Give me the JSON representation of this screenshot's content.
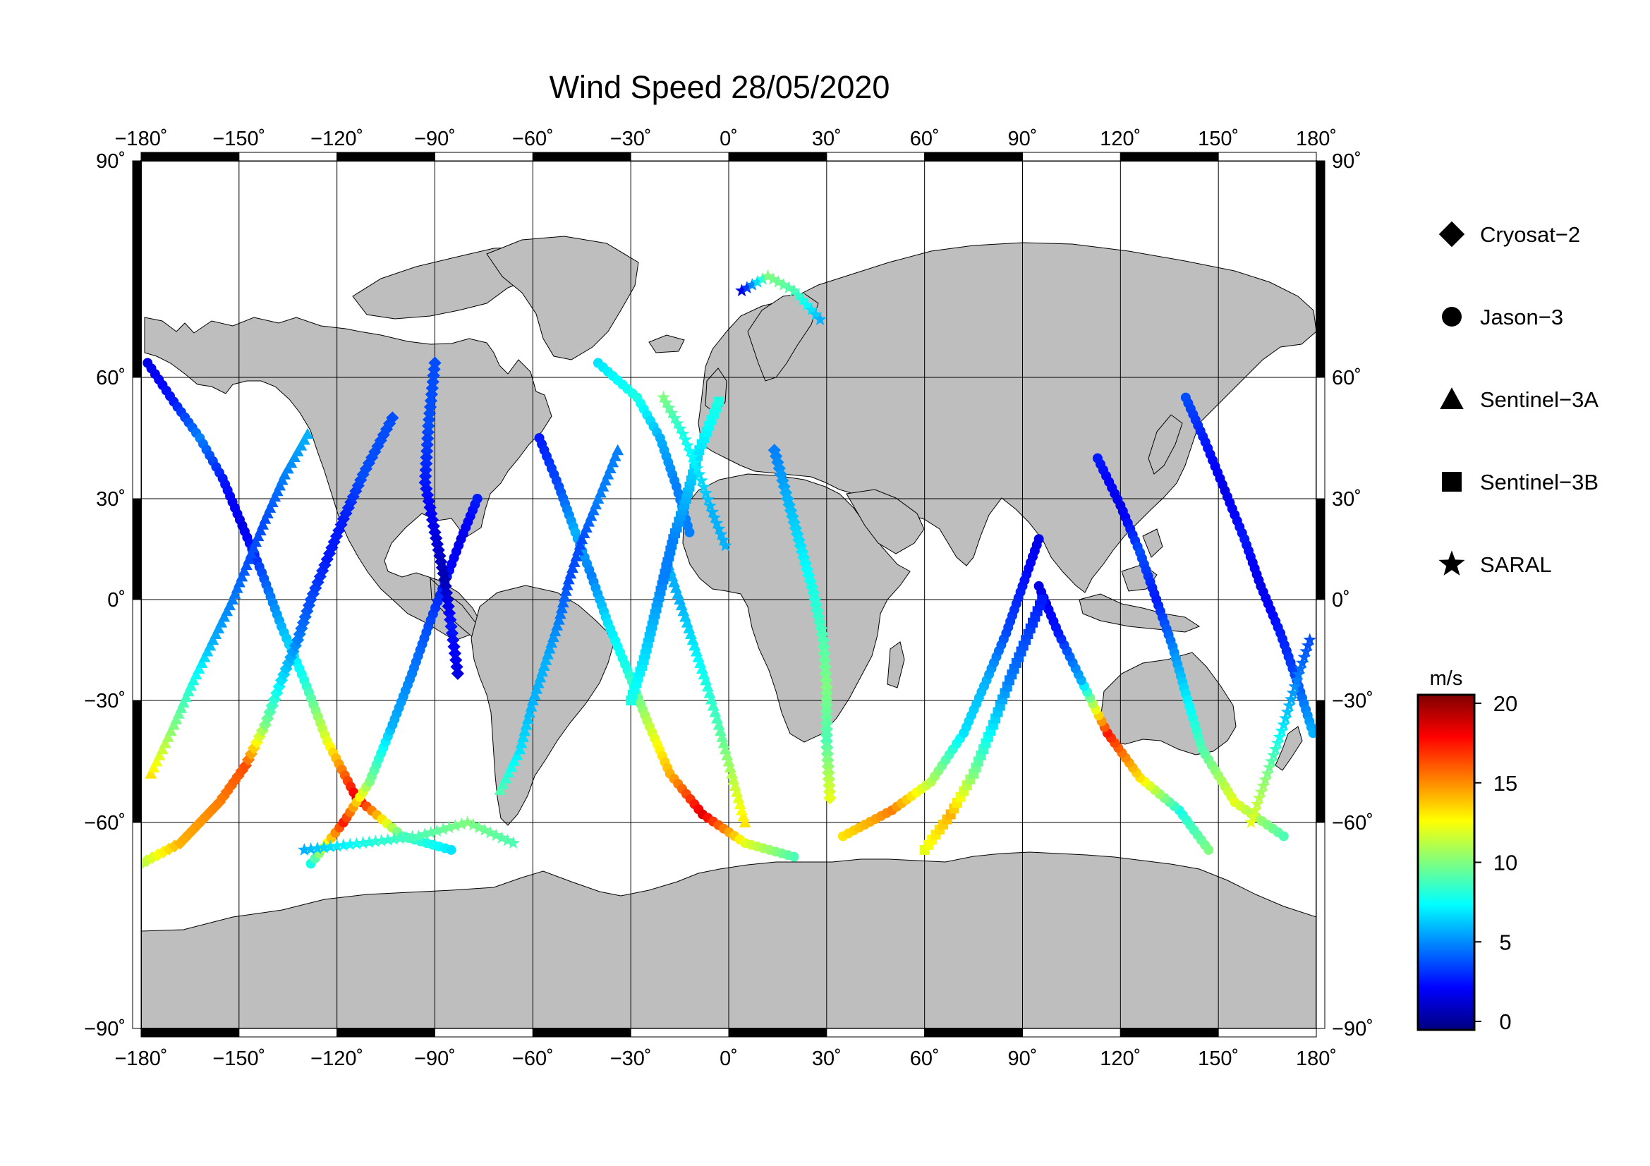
{
  "title": "Wind Speed 28/05/2020",
  "map": {
    "x_ticks": [
      -180,
      -150,
      -120,
      -90,
      -60,
      -30,
      0,
      30,
      60,
      90,
      120,
      150,
      180
    ],
    "y_ticks": [
      90,
      60,
      30,
      0,
      -30,
      -60,
      -90
    ],
    "x_tick_labels": [
      "−180˚",
      "−150˚",
      "−120˚",
      "−90˚",
      "−60˚",
      "−30˚",
      "0˚",
      "30˚",
      "60˚",
      "90˚",
      "120˚",
      "150˚",
      "180˚"
    ],
    "y_tick_labels": [
      "90˚",
      "60˚",
      "30˚",
      "0˚",
      "−30˚",
      "−60˚",
      "−90˚"
    ],
    "lon_range": [
      -180,
      180
    ],
    "lat_range": [
      -90,
      90
    ],
    "projection": "Mercator",
    "land_color": "#bebebe",
    "ocean_color": "#ffffff",
    "graticule": true
  },
  "legend": {
    "placement": "right",
    "items": [
      {
        "label": "Cryosat−2",
        "marker": "diamond"
      },
      {
        "label": "Jason−3",
        "marker": "circle"
      },
      {
        "label": "Sentinel−3A",
        "marker": "triangle"
      },
      {
        "label": "Sentinel−3B",
        "marker": "square"
      },
      {
        "label": "SARAL",
        "marker": "star"
      }
    ]
  },
  "colorbar": {
    "unit": "m/s",
    "min": 0,
    "max": 20,
    "ticks": [
      0,
      5,
      10,
      15,
      20
    ],
    "colormap": "jet",
    "colors": [
      "#00007f",
      "#0000ff",
      "#007fff",
      "#00ffff",
      "#7fff7f",
      "#ffff00",
      "#ff7f00",
      "#ff0000",
      "#7f0000"
    ]
  },
  "chart_data": {
    "type": "scatter",
    "xlabel": "",
    "ylabel": "",
    "xlim": [
      -180,
      180
    ],
    "ylim": [
      -90,
      90
    ],
    "value_unit": "m/s",
    "tracks": [
      {
        "satellite": "Jason-3",
        "points": [
          [
            -178,
            62,
            2
          ],
          [
            -170,
            54,
            3
          ],
          [
            -162,
            45,
            5
          ],
          [
            -155,
            35,
            3
          ],
          [
            -149,
            22,
            2
          ],
          [
            -143,
            8,
            4
          ],
          [
            -137,
            -8,
            6
          ],
          [
            -130,
            -24,
            8
          ],
          [
            -123,
            -40,
            12
          ],
          [
            -114,
            -54,
            18
          ],
          [
            -100,
            -62,
            9
          ],
          [
            -85,
            -64,
            7
          ]
        ]
      },
      {
        "satellite": "Jason-3",
        "points": [
          [
            -128,
            -66,
            8
          ],
          [
            -118,
            -60,
            17
          ],
          [
            -110,
            -50,
            10
          ],
          [
            -103,
            -36,
            6
          ],
          [
            -97,
            -22,
            5
          ],
          [
            -92,
            -8,
            4
          ],
          [
            -87,
            5,
            3
          ],
          [
            -82,
            18,
            2
          ],
          [
            -77,
            30,
            3
          ]
        ]
      },
      {
        "satellite": "Jason-3",
        "points": [
          [
            -58,
            45,
            3
          ],
          [
            -52,
            33,
            4
          ],
          [
            -47,
            20,
            6
          ],
          [
            -42,
            7,
            5
          ],
          [
            -37,
            -7,
            7
          ],
          [
            -31,
            -21,
            8
          ],
          [
            -25,
            -35,
            11
          ],
          [
            -18,
            -48,
            14
          ],
          [
            -8,
            -58,
            18
          ],
          [
            5,
            -63,
            12
          ],
          [
            20,
            -65,
            9
          ]
        ]
      },
      {
        "satellite": "Jason-3",
        "points": [
          [
            -40,
            62,
            7
          ],
          [
            -28,
            55,
            8
          ],
          [
            -21,
            45,
            6
          ],
          [
            -16,
            33,
            5
          ],
          [
            -12,
            20,
            5
          ]
        ]
      },
      {
        "satellite": "Jason-3",
        "points": [
          [
            35,
            -62,
            13
          ],
          [
            50,
            -57,
            15
          ],
          [
            62,
            -50,
            11
          ],
          [
            72,
            -38,
            7
          ],
          [
            79,
            -24,
            6
          ],
          [
            85,
            -10,
            4
          ],
          [
            90,
            4,
            3
          ],
          [
            95,
            18,
            2
          ]
        ]
      },
      {
        "satellite": "Jason-3",
        "points": [
          [
            147,
            -64,
            10
          ],
          [
            138,
            -57,
            8
          ],
          [
            126,
            -49,
            13
          ],
          [
            116,
            -38,
            17
          ],
          [
            108,
            -24,
            6
          ],
          [
            101,
            -10,
            3
          ],
          [
            95,
            4,
            2
          ]
        ]
      },
      {
        "satellite": "Jason-3",
        "points": [
          [
            113,
            40,
            3
          ],
          [
            120,
            28,
            2
          ],
          [
            126,
            14,
            4
          ],
          [
            131,
            0,
            3
          ],
          [
            136,
            -14,
            5
          ],
          [
            140,
            -28,
            7
          ],
          [
            145,
            -42,
            9
          ],
          [
            155,
            -55,
            12
          ],
          [
            170,
            -62,
            9
          ]
        ]
      },
      {
        "satellite": "Jason-3",
        "points": [
          [
            140,
            55,
            4
          ],
          [
            146,
            44,
            3
          ],
          [
            152,
            32,
            2
          ],
          [
            158,
            18,
            3
          ],
          [
            163,
            4,
            2
          ],
          [
            169,
            -10,
            3
          ],
          [
            174,
            -24,
            4
          ],
          [
            179,
            -38,
            6
          ]
        ]
      },
      {
        "satellite": "Cryosat-2",
        "points": [
          [
            -180,
            -66,
            11
          ],
          [
            -168,
            -63,
            14
          ],
          [
            -156,
            -55,
            15
          ],
          [
            -148,
            -46,
            16
          ],
          [
            -142,
            -36,
            10
          ],
          [
            -137,
            -24,
            7
          ],
          [
            -132,
            -12,
            5
          ],
          [
            -128,
            0,
            4
          ],
          [
            -123,
            12,
            3
          ],
          [
            -118,
            24,
            3
          ],
          [
            -112,
            36,
            4
          ],
          [
            -103,
            50,
            4
          ]
        ]
      },
      {
        "satellite": "Cryosat-2",
        "points": [
          [
            -90,
            62,
            4
          ],
          [
            -92,
            48,
            4
          ],
          [
            -93,
            34,
            3
          ],
          [
            -90,
            20,
            2
          ],
          [
            -87,
            6,
            1
          ],
          [
            -85,
            -8,
            3
          ],
          [
            -83,
            -22,
            2
          ]
        ]
      },
      {
        "satellite": "Cryosat-2",
        "points": [
          [
            14,
            42,
            5
          ],
          [
            18,
            30,
            6
          ],
          [
            22,
            16,
            7
          ],
          [
            26,
            2,
            8
          ],
          [
            29,
            -12,
            9
          ],
          [
            30,
            -26,
            10
          ],
          [
            30,
            -40,
            9
          ],
          [
            31,
            -54,
            12
          ]
        ]
      },
      {
        "satellite": "Sentinel-3A",
        "points": [
          [
            -177,
            -48,
            13
          ],
          [
            -170,
            -36,
            10
          ],
          [
            -164,
            -24,
            8
          ],
          [
            -158,
            -12,
            6
          ],
          [
            -152,
            0,
            5
          ],
          [
            -147,
            12,
            4
          ],
          [
            -142,
            24,
            4
          ],
          [
            -136,
            36,
            5
          ],
          [
            -129,
            46,
            6
          ]
        ]
      },
      {
        "satellite": "Sentinel-3A",
        "points": [
          [
            -70,
            -52,
            9
          ],
          [
            -64,
            -42,
            7
          ],
          [
            -60,
            -30,
            6
          ],
          [
            -56,
            -18,
            6
          ],
          [
            -52,
            -6,
            5
          ],
          [
            -49,
            6,
            4
          ],
          [
            -45,
            18,
            4
          ],
          [
            -40,
            30,
            5
          ],
          [
            -34,
            42,
            5
          ]
        ]
      },
      {
        "satellite": "Sentinel-3A",
        "points": [
          [
            5,
            -60,
            13
          ],
          [
            1,
            -48,
            11
          ],
          [
            -3,
            -36,
            9
          ],
          [
            -7,
            -24,
            8
          ],
          [
            -11,
            -12,
            7
          ],
          [
            -15,
            0,
            6
          ],
          [
            -19,
            12,
            6
          ]
        ]
      },
      {
        "satellite": "Sentinel-3B",
        "points": [
          [
            -30,
            -30,
            8
          ],
          [
            -26,
            -18,
            7
          ],
          [
            -23,
            -6,
            6
          ],
          [
            -20,
            6,
            5
          ],
          [
            -17,
            18,
            5
          ],
          [
            -13,
            30,
            6
          ],
          [
            -9,
            42,
            7
          ],
          [
            -3,
            54,
            8
          ]
        ]
      },
      {
        "satellite": "Sentinel-3B",
        "points": [
          [
            60,
            -64,
            12
          ],
          [
            68,
            -58,
            14
          ],
          [
            75,
            -48,
            10
          ],
          [
            81,
            -36,
            7
          ],
          [
            86,
            -24,
            5
          ],
          [
            91,
            -12,
            4
          ],
          [
            96,
            0,
            3
          ]
        ]
      },
      {
        "satellite": "SARAL",
        "points": [
          [
            -20,
            55,
            10
          ],
          [
            -14,
            46,
            8
          ],
          [
            -9,
            36,
            7
          ],
          [
            -5,
            26,
            6
          ],
          [
            -1,
            16,
            6
          ]
        ]
      },
      {
        "satellite": "SARAL",
        "points": [
          [
            4,
            72,
            2
          ],
          [
            12,
            74,
            10
          ],
          [
            20,
            72,
            9
          ],
          [
            28,
            68,
            6
          ]
        ]
      },
      {
        "satellite": "SARAL",
        "points": [
          [
            -130,
            -64,
            6
          ],
          [
            -112,
            -63,
            8
          ],
          [
            -95,
            -62,
            9
          ],
          [
            -80,
            -60,
            10
          ],
          [
            -66,
            -63,
            9
          ]
        ]
      },
      {
        "satellite": "SARAL",
        "points": [
          [
            160,
            -60,
            12
          ],
          [
            165,
            -48,
            10
          ],
          [
            170,
            -36,
            7
          ],
          [
            174,
            -24,
            5
          ],
          [
            178,
            -12,
            4
          ]
        ]
      }
    ]
  }
}
